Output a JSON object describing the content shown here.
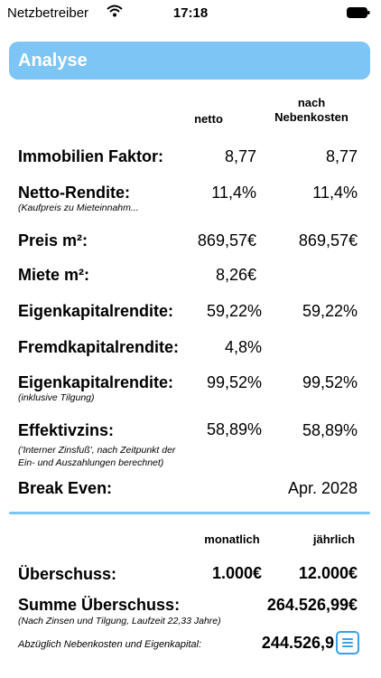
{
  "status_bar": {
    "carrier": "Netzbetreiber",
    "time": "17:18"
  },
  "header": {
    "title": "Analyse"
  },
  "columns": {
    "netto": "netto",
    "nach": "nach",
    "nebenkosten": "Nebenkosten"
  },
  "rows": {
    "faktor": {
      "label": "Immobilien Faktor:",
      "netto": "8,77",
      "nach": "8,77"
    },
    "rendite": {
      "label": "Netto-Rendite:",
      "sub": "(Kaufpreis zu Mieteinnahm...",
      "netto": "11,4%",
      "nach": "11,4%"
    },
    "preis": {
      "label": "Preis m²:",
      "netto": "869,57€",
      "nach": "869,57€"
    },
    "miete": {
      "label": "Miete m²:",
      "netto": "8,26€"
    },
    "ekr": {
      "label": "Eigenkapitalrendite:",
      "netto": "59,22%",
      "nach": "59,22%"
    },
    "fkr": {
      "label": "Fremdkapitalrendite:",
      "netto": "4,8%"
    },
    "ekr2": {
      "label": "Eigenkapitalrendite:",
      "sub": "(inklusive Tilgung)",
      "netto": "99,52%",
      "nach": "99,52%"
    },
    "effektiv": {
      "label": "Effektivzins:",
      "sub1": "('Interner Zinsfuß', nach Zeitpunkt der",
      "sub2": "Ein- und Auszahlungen berechnet)",
      "netto": "58,89%",
      "nach": "58,89%"
    },
    "breakeven": {
      "label": "Break Even:",
      "value": "Apr. 2028"
    }
  },
  "summary": {
    "col_monthly": "monatlich",
    "col_yearly": "jährlich",
    "ueberschuss": {
      "label": "Überschuss:",
      "monthly": "1.000€",
      "yearly": "12.000€"
    },
    "summe": {
      "label": "Summe Überschuss:",
      "value": "264.526,99€",
      "sub": "(Nach Zinsen und Tilgung, Laufzeit 22,33 Jahre)"
    },
    "abzueglich": {
      "label": "Abzüglich Nebenkosten und Eigenkapital:",
      "value": "244.526,9"
    }
  }
}
